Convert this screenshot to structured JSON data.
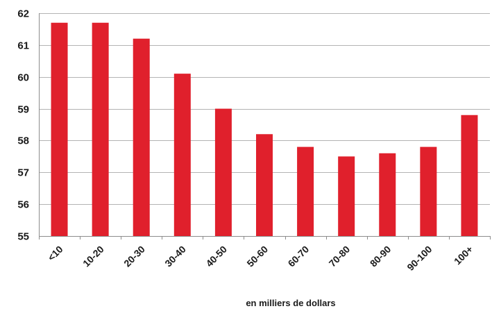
{
  "chart_data": {
    "type": "bar",
    "categories": [
      "<10",
      "10-20",
      "20-30",
      "30-40",
      "40-50",
      "50-60",
      "60-70",
      "70-80",
      "80-90",
      "90-100",
      "100+"
    ],
    "values": [
      61.7,
      61.7,
      61.2,
      60.1,
      59.0,
      58.2,
      57.8,
      57.5,
      57.6,
      57.8,
      58.8
    ],
    "xlabel": "en milliers de dollars",
    "ylabel": "",
    "ylim": [
      55,
      62
    ],
    "yticks": [
      55,
      56,
      57,
      58,
      59,
      60,
      61,
      62
    ],
    "grid": true,
    "bar_color": "#e0202c",
    "grid_color": "#b3b3b3"
  }
}
